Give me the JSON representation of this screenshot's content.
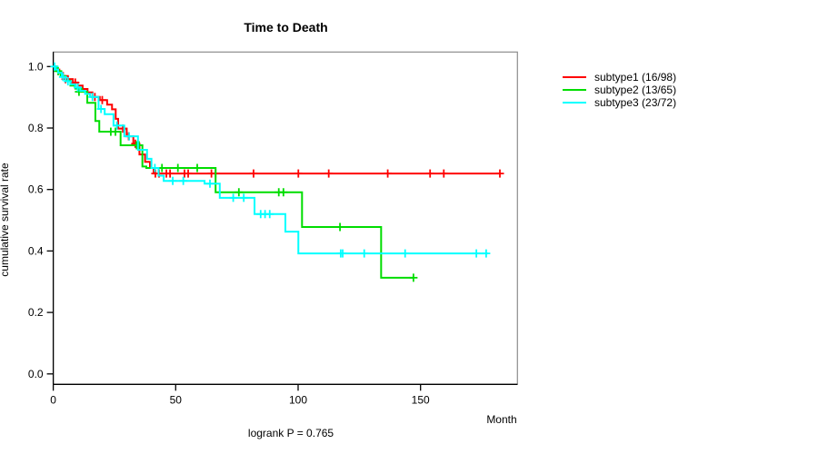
{
  "chart_data": {
    "type": "line",
    "subtype": "kaplan-meier-step-curves",
    "title": "Time to Death",
    "xlabel": "Month",
    "ylabel": "cumulative survival rate",
    "annotation": "logrank P = 0.765",
    "x_ticks": [
      0,
      50,
      100,
      150
    ],
    "y_tick_labels": [
      "0.0",
      "0.2",
      "0.4",
      "0.6",
      "0.8",
      "1.0"
    ],
    "xlim": [
      0,
      190
    ],
    "ylim": [
      0.0,
      1.0
    ],
    "grid": false,
    "legend": {
      "position": "right-outside",
      "entries": [
        {
          "label": "subtype1 (16/98)",
          "color": "#ff0000"
        },
        {
          "label": "subtype2 (13/65)",
          "color": "#00dd00"
        },
        {
          "label": "subtype3 (23/72)",
          "color": "#00ffff"
        }
      ]
    },
    "series": [
      {
        "name": "subtype1 (16/98)",
        "color": "#ff0000",
        "steps": [
          [
            0,
            1.0
          ],
          [
            1,
            0.99
          ],
          [
            2.5,
            0.979
          ],
          [
            4,
            0.969
          ],
          [
            6,
            0.959
          ],
          [
            8,
            0.948
          ],
          [
            10,
            0.938
          ],
          [
            12,
            0.927
          ],
          [
            14,
            0.916
          ],
          [
            16,
            0.901
          ],
          [
            19,
            0.891
          ],
          [
            22,
            0.876
          ],
          [
            24,
            0.861
          ],
          [
            25.5,
            0.83
          ],
          [
            26.5,
            0.798
          ],
          [
            30,
            0.773
          ],
          [
            32.7,
            0.749
          ],
          [
            35.2,
            0.714
          ],
          [
            37.5,
            0.69
          ],
          [
            39.5,
            0.67
          ],
          [
            41,
            0.652
          ]
        ],
        "end_month": 182.8,
        "censors": [
          [
            5,
            0.959
          ],
          [
            9,
            0.948
          ],
          [
            17,
            0.901
          ],
          [
            20,
            0.891
          ],
          [
            28.4,
            0.798
          ],
          [
            30.8,
            0.773
          ],
          [
            33.5,
            0.749
          ],
          [
            41.7,
            0.652
          ],
          [
            43.2,
            0.652
          ],
          [
            46.2,
            0.652
          ],
          [
            47.7,
            0.652
          ],
          [
            53.6,
            0.652
          ],
          [
            55.1,
            0.652
          ],
          [
            64.6,
            0.652
          ],
          [
            66.3,
            0.652
          ],
          [
            81.8,
            0.652
          ],
          [
            100.1,
            0.652
          ],
          [
            112.5,
            0.652
          ],
          [
            136.6,
            0.652
          ],
          [
            153.9,
            0.652
          ],
          [
            159.5,
            0.652
          ],
          [
            182.4,
            0.652
          ]
        ]
      },
      {
        "name": "subtype2 (13/65)",
        "color": "#00dd00",
        "steps": [
          [
            0,
            1.0
          ],
          [
            1.5,
            0.985
          ],
          [
            3,
            0.969
          ],
          [
            5,
            0.954
          ],
          [
            7,
            0.938
          ],
          [
            9,
            0.928
          ],
          [
            11.7,
            0.918
          ],
          [
            13.9,
            0.882
          ],
          [
            17.2,
            0.823
          ],
          [
            18.8,
            0.788
          ],
          [
            27.5,
            0.744
          ],
          [
            36.4,
            0.675
          ],
          [
            38,
            0.67
          ],
          [
            66.3,
            0.591
          ],
          [
            101.6,
            0.478
          ],
          [
            133.9,
            0.313
          ]
        ],
        "end_month": 147.1,
        "censors": [
          [
            2,
            0.985
          ],
          [
            10.5,
            0.918
          ],
          [
            23.5,
            0.788
          ],
          [
            25.4,
            0.788
          ],
          [
            34,
            0.744
          ],
          [
            35,
            0.744
          ],
          [
            44.4,
            0.67
          ],
          [
            50.9,
            0.67
          ],
          [
            58.8,
            0.67
          ],
          [
            75.8,
            0.591
          ],
          [
            92.1,
            0.591
          ],
          [
            94,
            0.591
          ],
          [
            117.1,
            0.478
          ],
          [
            147.1,
            0.313
          ]
        ]
      },
      {
        "name": "subtype3 (23/72)",
        "color": "#00ffff",
        "steps": [
          [
            0,
            1.0
          ],
          [
            1,
            0.99
          ],
          [
            2,
            0.98
          ],
          [
            3.5,
            0.966
          ],
          [
            5,
            0.952
          ],
          [
            7,
            0.942
          ],
          [
            9,
            0.932
          ],
          [
            11,
            0.921
          ],
          [
            13,
            0.911
          ],
          [
            15,
            0.901
          ],
          [
            18.5,
            0.862
          ],
          [
            21,
            0.845
          ],
          [
            24.6,
            0.808
          ],
          [
            29,
            0.773
          ],
          [
            34.6,
            0.729
          ],
          [
            38.3,
            0.7
          ],
          [
            40.1,
            0.67
          ],
          [
            43,
            0.645
          ],
          [
            45.1,
            0.628
          ],
          [
            61.8,
            0.619
          ],
          [
            68,
            0.573
          ],
          [
            82.2,
            0.52
          ],
          [
            94.8,
            0.463
          ],
          [
            100.1,
            0.392
          ]
        ],
        "end_month": 177.5,
        "censors": [
          [
            0.5,
            1.0
          ],
          [
            4,
            0.966
          ],
          [
            6,
            0.952
          ],
          [
            10,
            0.932
          ],
          [
            16,
            0.901
          ],
          [
            19.5,
            0.862
          ],
          [
            26,
            0.808
          ],
          [
            31,
            0.773
          ],
          [
            41.5,
            0.67
          ],
          [
            48.8,
            0.628
          ],
          [
            53.1,
            0.628
          ],
          [
            64,
            0.619
          ],
          [
            73.5,
            0.573
          ],
          [
            77.8,
            0.573
          ],
          [
            84.7,
            0.52
          ],
          [
            86.5,
            0.52
          ],
          [
            88.4,
            0.52
          ],
          [
            117.4,
            0.392
          ],
          [
            118.2,
            0.392
          ],
          [
            127,
            0.392
          ],
          [
            143.7,
            0.392
          ],
          [
            172.8,
            0.392
          ],
          [
            176.8,
            0.392
          ]
        ]
      }
    ]
  }
}
